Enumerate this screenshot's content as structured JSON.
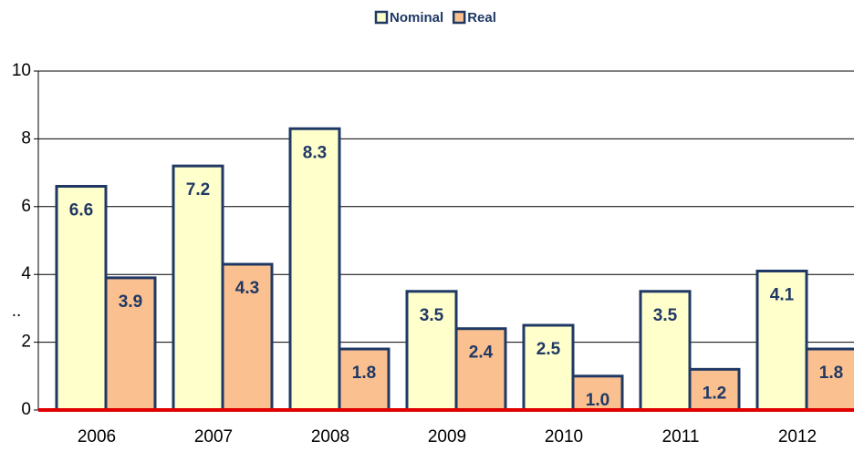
{
  "chart_data": {
    "type": "bar",
    "categories": [
      "2006",
      "2007",
      "2008",
      "2009",
      "2010",
      "2011",
      "2012"
    ],
    "series": [
      {
        "name": "Nominal",
        "color": "#ffffcc",
        "values": [
          6.6,
          7.2,
          8.3,
          3.5,
          2.5,
          3.5,
          4.1
        ],
        "value_labels": [
          "6.6",
          "7.2",
          "8.3",
          "3.5",
          "2.5",
          "3.5",
          "4.1"
        ]
      },
      {
        "name": "Real",
        "color": "#fac090",
        "values": [
          3.9,
          4.3,
          1.8,
          2.4,
          1.0,
          1.2,
          1.8
        ],
        "value_labels": [
          "3.9",
          "4.3",
          "1.8",
          "2.4",
          "1.0",
          "1.2",
          "1.8"
        ]
      }
    ],
    "ylabel": "..",
    "ylim": [
      0,
      10
    ],
    "yticks": [
      0,
      2,
      4,
      6,
      8,
      10
    ],
    "grid": true,
    "legend": "top"
  }
}
